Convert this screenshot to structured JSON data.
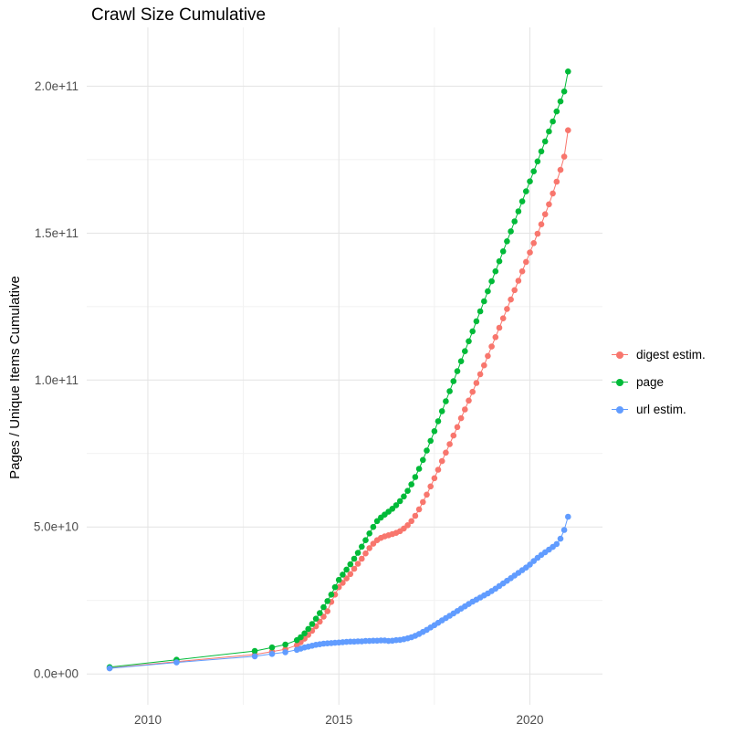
{
  "title": "Crawl Size Cumulative",
  "y_axis": {
    "label": "Pages / Unique Items Cumulative",
    "unit": "values in billions (1e9)",
    "range": [
      -10.5,
      220
    ],
    "ticks": [
      {
        "v": 0,
        "label": "0.0e+00"
      },
      {
        "v": 50,
        "label": "5.0e+10"
      },
      {
        "v": 100,
        "label": "1.0e+11"
      },
      {
        "v": 150,
        "label": "1.5e+11"
      },
      {
        "v": 200,
        "label": "2.0e+11"
      }
    ],
    "minor": [
      25,
      75,
      125,
      175
    ]
  },
  "x_axis": {
    "range": [
      2008.4,
      2021.9
    ],
    "ticks": [
      {
        "v": 2010,
        "label": "2010"
      },
      {
        "v": 2015,
        "label": "2015"
      },
      {
        "v": 2020,
        "label": "2020"
      }
    ],
    "minor": [
      2012.5,
      2017.5
    ]
  },
  "colors": {
    "grid_major": "#E3E3E3",
    "grid_minor": "#F1F1F1",
    "tick_text": "#4D4D4D"
  },
  "chart_data": {
    "type": "scatter",
    "title": "Crawl Size Cumulative",
    "xlabel": "",
    "ylabel": "Pages / Unique Items Cumulative",
    "y_unit": 1000000000,
    "legend_position": "right",
    "grid": true,
    "series": [
      {
        "name": "digest estim.",
        "color": "#F8766D",
        "points": [
          [
            2009,
            2
          ],
          [
            2010.75,
            4.2
          ],
          [
            2012.8,
            6.6
          ],
          [
            2013.25,
            7.6
          ],
          [
            2013.6,
            8.4
          ],
          [
            2013.9,
            9.8
          ],
          [
            2014,
            10.8
          ],
          [
            2014.1,
            12
          ],
          [
            2014.2,
            13.3
          ],
          [
            2014.3,
            14.7
          ],
          [
            2014.4,
            16.2
          ],
          [
            2014.5,
            17.8
          ],
          [
            2014.6,
            19.5
          ],
          [
            2014.7,
            21.3
          ],
          [
            2014.8,
            24.5
          ],
          [
            2014.9,
            27
          ],
          [
            2015,
            29.5
          ],
          [
            2015.1,
            31
          ],
          [
            2015.2,
            32.5
          ],
          [
            2015.3,
            34
          ],
          [
            2015.4,
            35.8
          ],
          [
            2015.5,
            37.5
          ],
          [
            2015.6,
            39.2
          ],
          [
            2015.7,
            41
          ],
          [
            2015.8,
            42.8
          ],
          [
            2015.9,
            44.3
          ],
          [
            2016,
            45.5
          ],
          [
            2016.1,
            46.3
          ],
          [
            2016.2,
            46.8
          ],
          [
            2016.3,
            47.2
          ],
          [
            2016.4,
            47.6
          ],
          [
            2016.5,
            48
          ],
          [
            2016.6,
            48.6
          ],
          [
            2016.7,
            49.5
          ],
          [
            2016.8,
            50.6
          ],
          [
            2016.9,
            52
          ],
          [
            2017,
            53.8
          ],
          [
            2017.1,
            56
          ],
          [
            2017.2,
            58.5
          ],
          [
            2017.3,
            61
          ],
          [
            2017.4,
            63.8
          ],
          [
            2017.5,
            66.6
          ],
          [
            2017.6,
            69.5
          ],
          [
            2017.7,
            72.4
          ],
          [
            2017.8,
            75.3
          ],
          [
            2017.9,
            78.2
          ],
          [
            2018,
            81.1
          ],
          [
            2018.1,
            84
          ],
          [
            2018.2,
            87
          ],
          [
            2018.3,
            90
          ],
          [
            2018.4,
            93
          ],
          [
            2018.5,
            96
          ],
          [
            2018.6,
            99
          ],
          [
            2018.7,
            102
          ],
          [
            2018.8,
            105
          ],
          [
            2018.9,
            108.2
          ],
          [
            2019,
            111.4
          ],
          [
            2019.1,
            114.6
          ],
          [
            2019.2,
            117.8
          ],
          [
            2019.3,
            121
          ],
          [
            2019.4,
            124.2
          ],
          [
            2019.5,
            127.4
          ],
          [
            2019.6,
            130.6
          ],
          [
            2019.7,
            133.8
          ],
          [
            2019.8,
            137
          ],
          [
            2019.9,
            140.2
          ],
          [
            2020,
            143.4
          ],
          [
            2020.1,
            146.6
          ],
          [
            2020.2,
            149.8
          ],
          [
            2020.3,
            153
          ],
          [
            2020.4,
            156.4
          ],
          [
            2020.5,
            159.8
          ],
          [
            2020.6,
            163.5
          ],
          [
            2020.7,
            167.5
          ],
          [
            2020.8,
            171.5
          ],
          [
            2020.9,
            176
          ],
          [
            2021,
            185
          ]
        ]
      },
      {
        "name": "page",
        "color": "#00BA38",
        "points": [
          [
            2009,
            2.3
          ],
          [
            2010.75,
            4.8
          ],
          [
            2012.8,
            7.8
          ],
          [
            2013.25,
            9
          ],
          [
            2013.6,
            10
          ],
          [
            2013.9,
            11.5
          ],
          [
            2014,
            12.5
          ],
          [
            2014.1,
            13.8
          ],
          [
            2014.2,
            15.3
          ],
          [
            2014.3,
            17
          ],
          [
            2014.4,
            18.8
          ],
          [
            2014.5,
            20.7
          ],
          [
            2014.6,
            22.7
          ],
          [
            2014.7,
            24.8
          ],
          [
            2014.8,
            27
          ],
          [
            2014.9,
            29.5
          ],
          [
            2015,
            32
          ],
          [
            2015.1,
            33.8
          ],
          [
            2015.2,
            35.5
          ],
          [
            2015.3,
            37.3
          ],
          [
            2015.4,
            39.2
          ],
          [
            2015.5,
            41.2
          ],
          [
            2015.6,
            43.3
          ],
          [
            2015.7,
            45.5
          ],
          [
            2015.8,
            47.8
          ],
          [
            2015.9,
            50
          ],
          [
            2016,
            52
          ],
          [
            2016.1,
            53.2
          ],
          [
            2016.2,
            54.2
          ],
          [
            2016.3,
            55.2
          ],
          [
            2016.4,
            56.2
          ],
          [
            2016.5,
            57.4
          ],
          [
            2016.6,
            58.8
          ],
          [
            2016.7,
            60.4
          ],
          [
            2016.8,
            62.3
          ],
          [
            2016.9,
            64.5
          ],
          [
            2017,
            67
          ],
          [
            2017.1,
            69.8
          ],
          [
            2017.2,
            72.8
          ],
          [
            2017.3,
            76
          ],
          [
            2017.4,
            79.3
          ],
          [
            2017.5,
            82.6
          ],
          [
            2017.6,
            86
          ],
          [
            2017.7,
            89.4
          ],
          [
            2017.8,
            92.8
          ],
          [
            2017.9,
            96.2
          ],
          [
            2018,
            99.6
          ],
          [
            2018.1,
            103
          ],
          [
            2018.2,
            106.4
          ],
          [
            2018.3,
            109.8
          ],
          [
            2018.4,
            113.2
          ],
          [
            2018.5,
            116.6
          ],
          [
            2018.6,
            120
          ],
          [
            2018.7,
            123.4
          ],
          [
            2018.8,
            126.8
          ],
          [
            2018.9,
            130.2
          ],
          [
            2019,
            133.6
          ],
          [
            2019.1,
            137
          ],
          [
            2019.2,
            140.4
          ],
          [
            2019.3,
            143.8
          ],
          [
            2019.4,
            147.2
          ],
          [
            2019.5,
            150.6
          ],
          [
            2019.6,
            154
          ],
          [
            2019.7,
            157.4
          ],
          [
            2019.8,
            160.8
          ],
          [
            2019.9,
            164.2
          ],
          [
            2020,
            167.6
          ],
          [
            2020.1,
            171
          ],
          [
            2020.2,
            174.4
          ],
          [
            2020.3,
            177.8
          ],
          [
            2020.4,
            181.2
          ],
          [
            2020.5,
            184.6
          ],
          [
            2020.6,
            188
          ],
          [
            2020.7,
            191.4
          ],
          [
            2020.8,
            194.8
          ],
          [
            2020.9,
            198.2
          ],
          [
            2021,
            205
          ]
        ]
      },
      {
        "name": "url estim.",
        "color": "#619CFF",
        "points": [
          [
            2009,
            1.9
          ],
          [
            2010.75,
            3.9
          ],
          [
            2012.8,
            6
          ],
          [
            2013.25,
            6.8
          ],
          [
            2013.6,
            7.4
          ],
          [
            2013.9,
            8.2
          ],
          [
            2014,
            8.6
          ],
          [
            2014.1,
            9
          ],
          [
            2014.2,
            9.3
          ],
          [
            2014.3,
            9.6
          ],
          [
            2014.4,
            9.9
          ],
          [
            2014.5,
            10.1
          ],
          [
            2014.6,
            10.3
          ],
          [
            2014.7,
            10.4
          ],
          [
            2014.8,
            10.5
          ],
          [
            2014.9,
            10.6
          ],
          [
            2015,
            10.7
          ],
          [
            2015.1,
            10.8
          ],
          [
            2015.2,
            10.9
          ],
          [
            2015.3,
            11
          ],
          [
            2015.4,
            11
          ],
          [
            2015.5,
            11.1
          ],
          [
            2015.6,
            11.1
          ],
          [
            2015.7,
            11.2
          ],
          [
            2015.8,
            11.2
          ],
          [
            2015.9,
            11.3
          ],
          [
            2016,
            11.3
          ],
          [
            2016.1,
            11.4
          ],
          [
            2016.2,
            11.4
          ],
          [
            2016.3,
            11.2
          ],
          [
            2016.4,
            11.3
          ],
          [
            2016.5,
            11.5
          ],
          [
            2016.6,
            11.6
          ],
          [
            2016.7,
            11.8
          ],
          [
            2016.8,
            12.1
          ],
          [
            2016.9,
            12.5
          ],
          [
            2017,
            13
          ],
          [
            2017.1,
            13.6
          ],
          [
            2017.2,
            14.3
          ],
          [
            2017.3,
            15
          ],
          [
            2017.4,
            15.8
          ],
          [
            2017.5,
            16.6
          ],
          [
            2017.6,
            17.4
          ],
          [
            2017.7,
            18.2
          ],
          [
            2017.8,
            19
          ],
          [
            2017.9,
            19.8
          ],
          [
            2018,
            20.6
          ],
          [
            2018.1,
            21.4
          ],
          [
            2018.2,
            22.2
          ],
          [
            2018.3,
            23
          ],
          [
            2018.4,
            23.8
          ],
          [
            2018.5,
            24.6
          ],
          [
            2018.6,
            25.3
          ],
          [
            2018.7,
            26
          ],
          [
            2018.8,
            26.7
          ],
          [
            2018.9,
            27.4
          ],
          [
            2019,
            28.2
          ],
          [
            2019.1,
            29
          ],
          [
            2019.2,
            29.9
          ],
          [
            2019.3,
            30.8
          ],
          [
            2019.4,
            31.7
          ],
          [
            2019.5,
            32.6
          ],
          [
            2019.6,
            33.5
          ],
          [
            2019.7,
            34.4
          ],
          [
            2019.8,
            35.3
          ],
          [
            2019.9,
            36.2
          ],
          [
            2020,
            37.2
          ],
          [
            2020.1,
            38.4
          ],
          [
            2020.2,
            39.5
          ],
          [
            2020.3,
            40.5
          ],
          [
            2020.4,
            41.4
          ],
          [
            2020.5,
            42.3
          ],
          [
            2020.6,
            43.2
          ],
          [
            2020.7,
            44.2
          ],
          [
            2020.8,
            46
          ],
          [
            2020.9,
            49
          ],
          [
            2021,
            53.5
          ]
        ]
      }
    ]
  }
}
